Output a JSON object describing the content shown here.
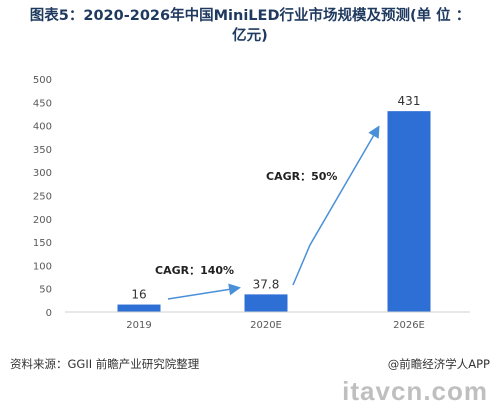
{
  "title": {
    "line1": "图表5：2020-2026年中国MiniLED行业市场规模及预测(单 位 ：",
    "line2": "亿元)"
  },
  "source": "资料来源：GGII 前瞻产业研究院整理",
  "credit": "@前瞻经济学人APP",
  "watermark_text": "itavcn.com",
  "colors": {
    "bar": "#2e6fd6",
    "arrow": "#4a90d9",
    "axis_text": "#595959",
    "gridline": "#e5e5e5"
  },
  "annotations": [
    {
      "text": "CAGR：140%",
      "from": "2019",
      "to": "2020E"
    },
    {
      "text": "CAGR：50%",
      "from": "2020E",
      "to": "2026E"
    }
  ],
  "chart_data": {
    "type": "bar",
    "categories": [
      "2019",
      "2020E",
      "2026E"
    ],
    "values": [
      16,
      37.8,
      431
    ],
    "value_labels": [
      "16",
      "37.8",
      "431"
    ],
    "title": "图表5：2020-2026年中国MiniLED行业市场规模及预测(单 位 ：亿元)",
    "xlabel": "",
    "ylabel": "",
    "ylim": [
      0,
      500
    ],
    "yticks": [
      0,
      50,
      100,
      150,
      200,
      250,
      300,
      350,
      400,
      450,
      500
    ],
    "grid": false,
    "legend": "none"
  }
}
